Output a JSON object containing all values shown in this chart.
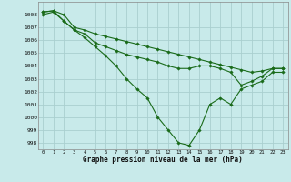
{
  "line1": [
    1008.0,
    1008.2,
    1007.5,
    1006.8,
    1006.2,
    1005.5,
    1004.8,
    1004.0,
    1003.0,
    1002.2,
    1001.5,
    1000.0,
    999.0,
    998.0,
    997.8,
    999.0,
    1001.0,
    1001.5,
    1001.0,
    1002.2,
    1002.5,
    1002.8,
    1003.5,
    1003.5
  ],
  "line2": [
    1008.2,
    1008.3,
    1007.5,
    1006.8,
    1006.5,
    1005.8,
    1005.5,
    1005.2,
    1004.9,
    1004.7,
    1004.5,
    1004.3,
    1004.0,
    1003.8,
    1003.8,
    1004.0,
    1004.0,
    1003.8,
    1003.5,
    1002.5,
    1002.8,
    1003.2,
    1003.8,
    1003.8
  ],
  "line3": [
    1008.2,
    1008.3,
    1008.0,
    1007.0,
    1006.8,
    1006.5,
    1006.3,
    1006.1,
    1005.9,
    1005.7,
    1005.5,
    1005.3,
    1005.1,
    1004.9,
    1004.7,
    1004.5,
    1004.3,
    1004.1,
    1003.9,
    1003.7,
    1003.5,
    1003.6,
    1003.8,
    1003.8
  ],
  "x": [
    0,
    1,
    2,
    3,
    4,
    5,
    6,
    7,
    8,
    9,
    10,
    11,
    12,
    13,
    14,
    15,
    16,
    17,
    18,
    19,
    20,
    21,
    22,
    23
  ],
  "line_color": "#1a6b1a",
  "bg_color": "#c8eaea",
  "grid_color": "#aacfcf",
  "xlabel": "Graphe pression niveau de la mer (hPa)",
  "ylim_min": 997.5,
  "ylim_max": 1009.0,
  "yticks": [
    998,
    999,
    1000,
    1001,
    1002,
    1003,
    1004,
    1005,
    1006,
    1007,
    1008
  ]
}
